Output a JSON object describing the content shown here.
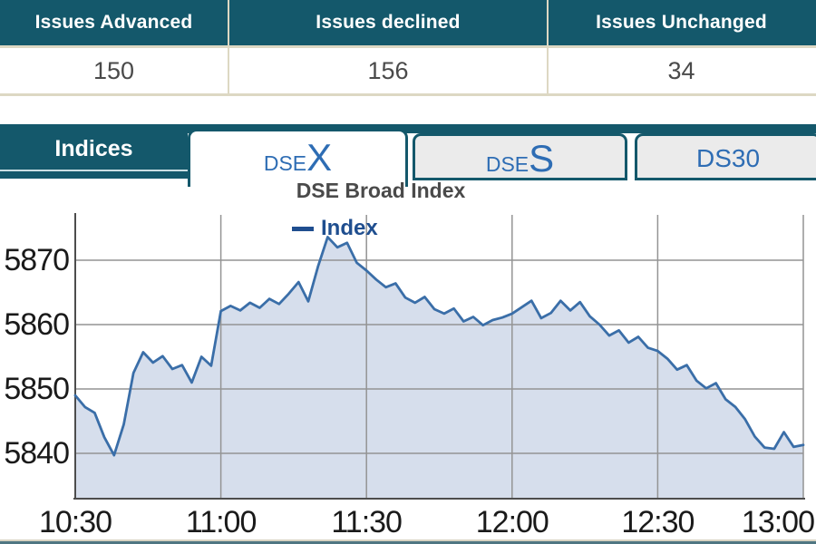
{
  "table": {
    "headers": [
      "Issues Advanced",
      "Issues declined",
      "Issues Unchanged"
    ],
    "values": [
      "150",
      "156",
      "34"
    ]
  },
  "tabs": {
    "panel_label": "Indices",
    "items": [
      {
        "prefix": "DSE",
        "suffix": "X",
        "active": true
      },
      {
        "prefix": "DSE",
        "suffix": "S",
        "active": false
      },
      {
        "prefix": "DS30",
        "suffix": "",
        "active": false
      }
    ]
  },
  "chart_data": {
    "type": "area",
    "title": "DSE Broad Index",
    "series_name": "Index",
    "x_ticks": [
      "10:30",
      "11:00",
      "11:30",
      "12:00",
      "12:30",
      "13:00"
    ],
    "y_ticks": [
      5870,
      5860,
      5850,
      5840
    ],
    "ylim": [
      5833,
      5877
    ],
    "x_range_minutes": [
      0,
      150
    ],
    "grid": true,
    "legend_position": "top-center",
    "x_minutes": [
      0,
      2,
      4,
      6,
      8,
      10,
      12,
      14,
      16,
      18,
      20,
      22,
      24,
      26,
      28,
      30,
      32,
      34,
      36,
      38,
      40,
      42,
      44,
      46,
      48,
      50,
      52,
      54,
      56,
      58,
      60,
      62,
      64,
      66,
      68,
      70,
      72,
      74,
      76,
      78,
      80,
      82,
      84,
      86,
      88,
      90,
      92,
      94,
      96,
      98,
      100,
      102,
      104,
      106,
      108,
      110,
      112,
      114,
      116,
      118,
      120,
      122,
      124,
      126,
      128,
      130,
      132,
      134,
      136,
      138,
      140,
      142,
      144,
      146,
      148,
      150
    ],
    "values": [
      5849.0,
      5847.2,
      5846.3,
      5842.5,
      5839.7,
      5844.5,
      5852.5,
      5855.7,
      5854.1,
      5855.1,
      5853.1,
      5853.7,
      5851.0,
      5855.0,
      5853.6,
      5862.1,
      5862.9,
      5862.2,
      5863.4,
      5862.6,
      5864.0,
      5863.2,
      5864.8,
      5866.6,
      5863.6,
      5869.0,
      5873.6,
      5872.0,
      5872.7,
      5869.6,
      5868.4,
      5867.0,
      5865.8,
      5866.4,
      5864.2,
      5863.4,
      5864.3,
      5862.4,
      5861.7,
      5862.5,
      5860.5,
      5861.2,
      5859.9,
      5860.7,
      5861.1,
      5861.7,
      5862.7,
      5863.7,
      5861.0,
      5861.8,
      5863.7,
      5862.2,
      5863.5,
      5861.3,
      5860.0,
      5858.3,
      5859.1,
      5857.2,
      5858.1,
      5856.4,
      5855.9,
      5854.7,
      5853.0,
      5853.7,
      5851.3,
      5850.1,
      5850.9,
      5848.4,
      5847.2,
      5845.3,
      5842.6,
      5840.9,
      5840.7,
      5843.3,
      5841.0,
      5841.3
    ],
    "colors": {
      "line": "#3A6EA8",
      "fill": "#D6DEEC",
      "grid": "#949494",
      "axis": "#4D4D4D"
    }
  },
  "colors": {
    "accent_teal": "#14586B",
    "tab_text_blue": "#2E6DB4",
    "legend_navy": "#1F4E8F",
    "border_beige": "#DDD8C3",
    "value_text": "#4A4A4A"
  }
}
